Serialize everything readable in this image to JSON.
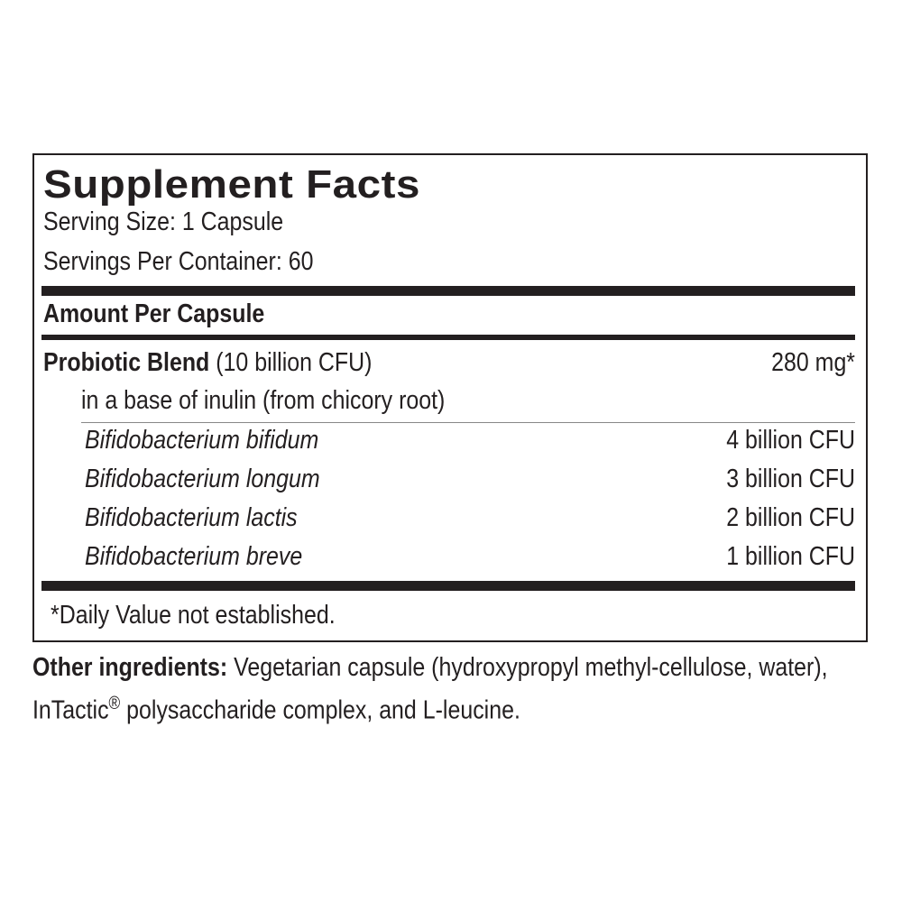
{
  "title": "Supplement Facts",
  "serving_size": "Serving Size: 1 Capsule",
  "servings_per_container": "Servings Per Container: 60",
  "amount_header": "Amount Per Capsule",
  "blend": {
    "name": "Probiotic Blend",
    "detail": "(10 billion CFU)",
    "amount": "280 mg*",
    "base": "in a base of inulin (from chicory root)"
  },
  "strains": [
    {
      "name": "Bifidobacterium bifidum",
      "amount": "4 billion CFU"
    },
    {
      "name": "Bifidobacterium longum",
      "amount": "3 billion CFU"
    },
    {
      "name": "Bifidobacterium lactis",
      "amount": "2 billion CFU"
    },
    {
      "name": "Bifidobacterium breve",
      "amount": "1 billion CFU"
    }
  ],
  "footnote": "*Daily Value not established.",
  "other": {
    "label": "Other ingredients:",
    "text1": " Vegetarian capsule (hydroxypropyl methyl-cellulose, water), InTactic",
    "reg": "®",
    "text2": " polysaccharide complex, and L-leucine."
  }
}
